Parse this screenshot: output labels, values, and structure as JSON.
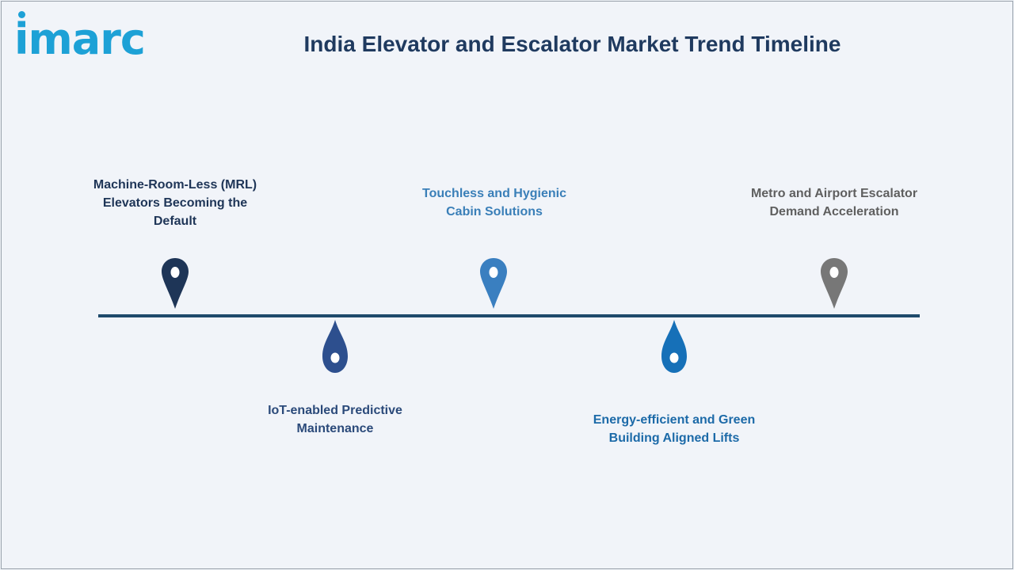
{
  "brand": {
    "logo_text": "imarc",
    "color": "#1da1d6"
  },
  "header": {
    "title": "India Elevator and Escalator Market Trend Timeline"
  },
  "timeline": {
    "line_color": "#1f4a6b",
    "milestones": [
      {
        "label": "Machine-Room-Less (MRL) Elevators Becoming the Default",
        "position": "above",
        "pin_color": "#1e3557",
        "label_color": "#1e3557",
        "icon": "map-pin-icon"
      },
      {
        "label": "IoT-enabled Predictive Maintenance",
        "position": "below",
        "pin_color": "#2d4f8e",
        "label_color": "#2b4a7a",
        "icon": "water-drop-icon"
      },
      {
        "label": "Touchless and Hygienic Cabin Solutions",
        "position": "above",
        "pin_color": "#3a7fc0",
        "label_color": "#3a7fb8",
        "icon": "map-pin-icon"
      },
      {
        "label": "Energy-efficient and Green Building Aligned Lifts",
        "position": "below",
        "pin_color": "#1670b8",
        "label_color": "#1c6aa8",
        "icon": "water-drop-icon"
      },
      {
        "label": "Metro and Airport Escalator Demand Acceleration",
        "position": "above",
        "pin_color": "#777777",
        "label_color": "#5f5f5f",
        "icon": "map-pin-icon"
      }
    ]
  }
}
